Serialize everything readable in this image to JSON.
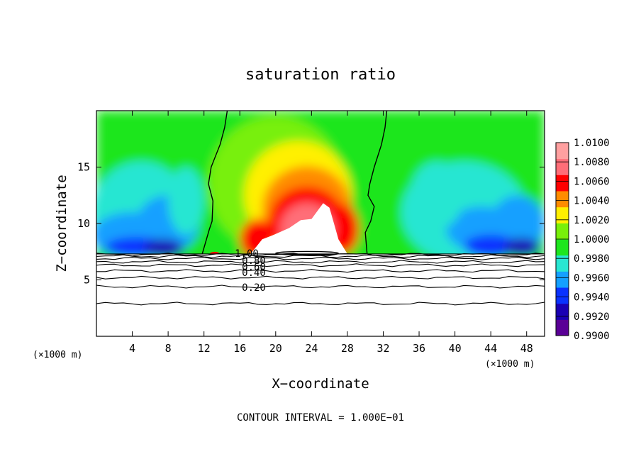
{
  "chart_data": {
    "type": "heatmap",
    "title": "saturation ratio",
    "xlabel": "X−coordinate",
    "ylabel": "Z−coordinate",
    "x_unit": "(×1000 m)",
    "x_unit_right": "(×1000 m)",
    "xlim": [
      0,
      50
    ],
    "ylim": [
      0,
      20
    ],
    "x_ticks": [
      4,
      8,
      12,
      16,
      20,
      24,
      28,
      32,
      36,
      40,
      44,
      48
    ],
    "x_tick_labels": [
      "4",
      "8",
      "12",
      "16",
      "20",
      "24",
      "28",
      "32",
      "36",
      "40",
      "44",
      "48"
    ],
    "y_ticks": [
      5,
      10,
      15
    ],
    "y_tick_labels": [
      "5",
      "10",
      "15"
    ],
    "colorbar": {
      "range": [
        0.99,
        1.01
      ],
      "levels": [
        0.99,
        0.992,
        0.994,
        0.996,
        0.998,
        1.0,
        1.002,
        1.004,
        1.006,
        1.008,
        1.01
      ],
      "tick_labels": [
        "1.0100",
        "1.0080",
        "1.0060",
        "1.0040",
        "1.0020",
        "1.0000",
        "0.9980",
        "0.9960",
        "0.9940",
        "0.9920",
        "0.9900"
      ],
      "colors": [
        "#5a0096",
        "#1a00b4",
        "#0a32ff",
        "#14a0ff",
        "#28e6d2",
        "#1ee61e",
        "#78f00a",
        "#fff000",
        "#ff8c00",
        "#ff0000",
        "#ff6e78",
        "#ffa0a0"
      ]
    },
    "contour_interval_label": "CONTOUR INTERVAL = 1.000E−01",
    "contour_labels": [
      "1.00",
      "0.80",
      "0.60",
      "0.40",
      "0.20"
    ],
    "contour_levels_below_cloud_base": [
      {
        "z": 2.9,
        "level": 0.1
      },
      {
        "z": 4.4,
        "level": 0.2
      },
      {
        "z": 5.2,
        "level": 0.3
      },
      {
        "z": 5.8,
        "level": 0.4
      },
      {
        "z": 6.3,
        "level": 0.5
      },
      {
        "z": 6.6,
        "level": 0.6
      },
      {
        "z": 6.9,
        "level": 0.7
      },
      {
        "z": 7.1,
        "level": 0.8
      },
      {
        "z": 7.25,
        "level": 0.9
      }
    ],
    "cloud_base_z": 7.3,
    "saturation_boundary_left": [
      [
        11.8,
        7.3
      ],
      [
        12.6,
        9.5
      ],
      [
        12.9,
        10.2
      ],
      [
        13.0,
        12.0
      ],
      [
        12.5,
        13.5
      ],
      [
        12.8,
        15.0
      ],
      [
        13.8,
        17.0
      ],
      [
        14.3,
        18.5
      ],
      [
        14.6,
        20.0
      ]
    ],
    "saturation_boundary_right": [
      [
        30.2,
        7.3
      ],
      [
        30.0,
        9.2
      ],
      [
        30.6,
        10.2
      ],
      [
        31.0,
        11.5
      ],
      [
        30.3,
        12.5
      ],
      [
        30.5,
        13.5
      ],
      [
        31.0,
        15.0
      ],
      [
        31.8,
        17.0
      ],
      [
        32.2,
        18.5
      ],
      [
        32.4,
        20.0
      ]
    ]
  }
}
